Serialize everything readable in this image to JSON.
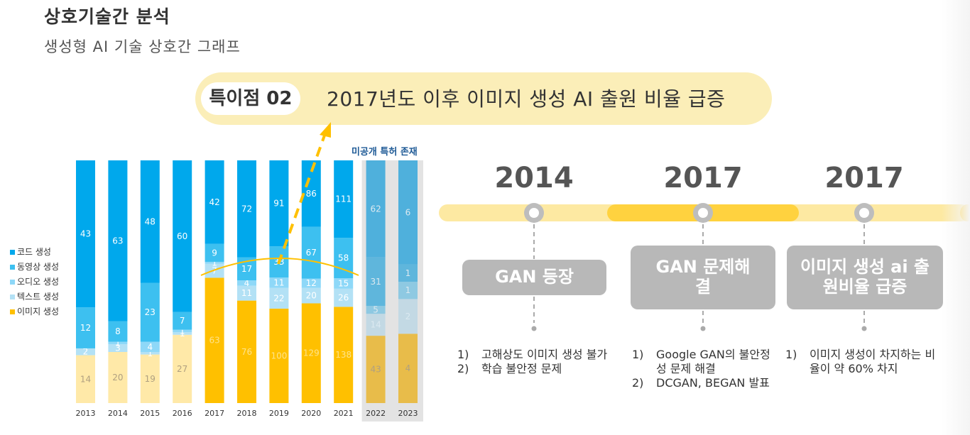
{
  "header": {
    "title": "상호기술간 분석",
    "subtitle": "생성형 AI 기술 상호간 그래프"
  },
  "highlight": {
    "tag": "특이점 02",
    "text": "2017년도 이후 이미지 생성 AI 출원 비율 급증"
  },
  "note_unpublished": "미공개 특허 존재",
  "chart_data": {
    "type": "bar",
    "stacked": true,
    "normalized_100_percent": true,
    "categories": [
      "2013",
      "2014",
      "2015",
      "2016",
      "2017",
      "2018",
      "2019",
      "2020",
      "2021",
      "2022",
      "2023"
    ],
    "series": [
      {
        "name": "이미지 생성",
        "color": "#ffc000",
        "values": [
          14,
          20,
          19,
          27,
          63,
          76,
          100,
          129,
          138,
          43,
          4
        ]
      },
      {
        "name": "텍스트 생성",
        "color": "#b3e1f5",
        "values": [
          2,
          3,
          1,
          1,
          7,
          11,
          22,
          20,
          26,
          14,
          2
        ]
      },
      {
        "name": "오디오 생성",
        "color": "#8ed8f8",
        "values": [
          0,
          1,
          4,
          1,
          1,
          4,
          11,
          12,
          15,
          5,
          1
        ]
      },
      {
        "name": "동영상 생성",
        "color": "#3dc0f0",
        "values": [
          12,
          8,
          23,
          7,
          9,
          17,
          33,
          67,
          58,
          31,
          1
        ]
      },
      {
        "name": "코드 생성",
        "color": "#00a8ec",
        "values": [
          43,
          63,
          48,
          60,
          42,
          72,
          91,
          86,
          111,
          62,
          6
        ]
      }
    ],
    "highlighted_categories": [
      "2022",
      "2023"
    ],
    "legend_position": "left"
  },
  "timeline": [
    {
      "year": "2014",
      "box": "GAN 등장",
      "notes": [
        {
          "n": "1)",
          "t": "고해상도 이미지 생성 불가"
        },
        {
          "n": "2)",
          "t": "학습 불안정 문제"
        }
      ]
    },
    {
      "year": "2017",
      "box": "GAN 문제해결",
      "notes": [
        {
          "n": "1)",
          "t": "Google GAN의 불안정성 문제 해결"
        },
        {
          "n": "2)",
          "t": "DCGAN, BEGAN 발표"
        }
      ]
    },
    {
      "year": "2017",
      "box": "이미지 생성 ai 출원비율 급증",
      "notes": [
        {
          "n": "1)",
          "t": "이미지 생성이 차지하는 비율이 약 60% 차지"
        }
      ]
    }
  ],
  "colors": {
    "accent_yellow": "#ffc000",
    "timeline_light": "#fde9a2",
    "timeline_dark": "#ffd23f",
    "box_gray": "#b8b8b8"
  }
}
